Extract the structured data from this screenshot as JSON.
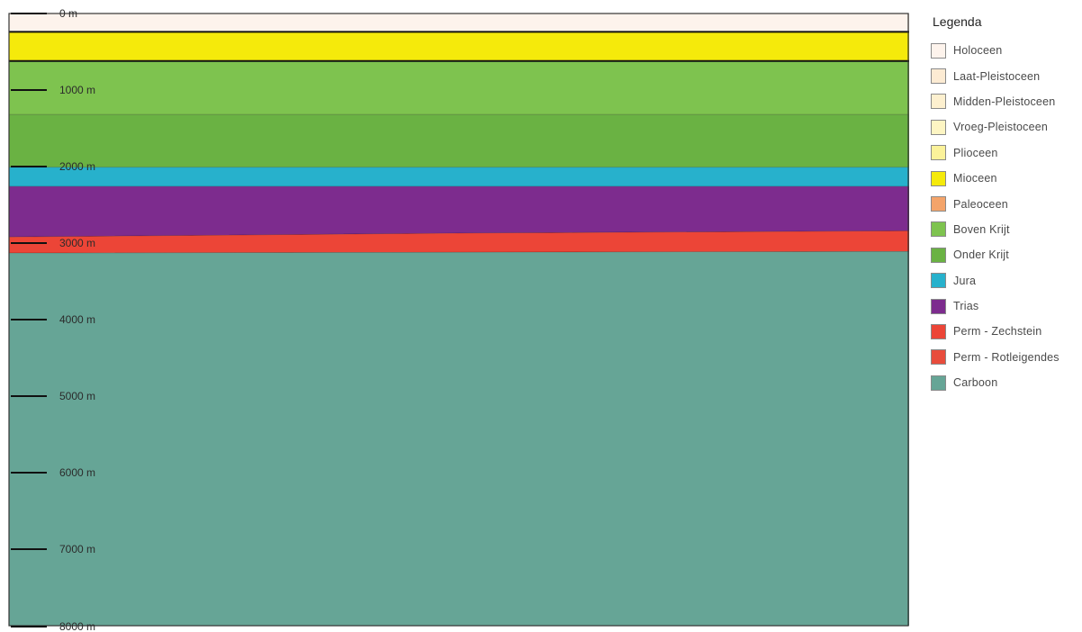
{
  "legend": {
    "title": "Legenda",
    "items": [
      {
        "label": "Holoceen",
        "color": "#fdf3ec"
      },
      {
        "label": "Laat-Pleistoceen",
        "color": "#fcebd3"
      },
      {
        "label": "Midden-Pleistoceen",
        "color": "#fdf0cf"
      },
      {
        "label": "Vroeg-Pleistoceen",
        "color": "#fdf5c3"
      },
      {
        "label": "Plioceen",
        "color": "#fbf29a"
      },
      {
        "label": "Mioceen",
        "color": "#f5ea0b"
      },
      {
        "label": "Paleoceen",
        "color": "#f4a46a"
      },
      {
        "label": "Boven Krijt",
        "color": "#7ec34f"
      },
      {
        "label": "Onder Krijt",
        "color": "#6ab243"
      },
      {
        "label": "Jura",
        "color": "#27b1cc"
      },
      {
        "label": "Trias",
        "color": "#7d2c8e"
      },
      {
        "label": "Perm - Zechstein",
        "color": "#ec4537"
      },
      {
        "label": "Perm - Rotleigendes",
        "color": "#e84c3c"
      },
      {
        "label": "Carboon",
        "color": "#66a596"
      }
    ]
  },
  "depth_axis": {
    "ticks": [
      {
        "depth": 0,
        "label": "0 m"
      },
      {
        "depth": 1000,
        "label": "1000 m"
      },
      {
        "depth": 2000,
        "label": "2000 m"
      },
      {
        "depth": 3000,
        "label": "3000 m"
      },
      {
        "depth": 4000,
        "label": "4000 m"
      },
      {
        "depth": 5000,
        "label": "5000 m"
      },
      {
        "depth": 6000,
        "label": "6000 m"
      },
      {
        "depth": 7000,
        "label": "7000 m"
      },
      {
        "depth": 8000,
        "label": "8000 m"
      }
    ],
    "range": [
      0,
      8000
    ]
  },
  "strata": [
    {
      "unit": "Holoceen",
      "color": "#fdf3ec",
      "top": [
        0,
        0,
        0
      ],
      "base": [
        240,
        240,
        240
      ]
    },
    {
      "unit": "Mioceen",
      "color": "#f5ea0b",
      "top": [
        240,
        240,
        240
      ],
      "base": [
        620,
        620,
        620
      ]
    },
    {
      "unit": "Boven Krijt",
      "color": "#7ec34f",
      "top": [
        620,
        620,
        620
      ],
      "base": [
        1320,
        1320,
        1320
      ]
    },
    {
      "unit": "Onder Krijt",
      "color": "#6ab243",
      "top": [
        1320,
        1320,
        1320
      ],
      "base": [
        2010,
        2010,
        2010
      ]
    },
    {
      "unit": "Jura",
      "color": "#27b1cc",
      "top": [
        2010,
        2010,
        2010
      ],
      "base": [
        2260,
        2260,
        2260
      ]
    },
    {
      "unit": "Trias",
      "color": "#7d2c8e",
      "top": [
        2260,
        2260,
        2260
      ],
      "base": [
        2920,
        2870,
        2840
      ]
    },
    {
      "unit": "Perm - Zechstein",
      "color": "#ec4537",
      "top": [
        2920,
        2870,
        2840
      ],
      "base": [
        3130,
        3120,
        3110
      ]
    },
    {
      "unit": "Carboon",
      "color": "#66a596",
      "top": [
        3130,
        3120,
        3110
      ],
      "base": [
        8000,
        8000,
        8000
      ]
    }
  ]
}
